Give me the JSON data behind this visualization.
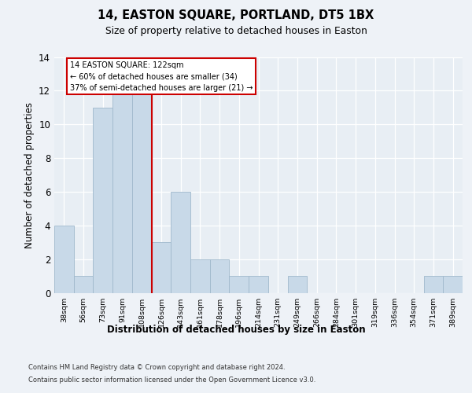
{
  "title1": "14, EASTON SQUARE, PORTLAND, DT5 1BX",
  "title2": "Size of property relative to detached houses in Easton",
  "xlabel": "Distribution of detached houses by size in Easton",
  "ylabel": "Number of detached properties",
  "bin_labels": [
    "38sqm",
    "56sqm",
    "73sqm",
    "91sqm",
    "108sqm",
    "126sqm",
    "143sqm",
    "161sqm",
    "178sqm",
    "196sqm",
    "214sqm",
    "231sqm",
    "249sqm",
    "266sqm",
    "284sqm",
    "301sqm",
    "319sqm",
    "336sqm",
    "354sqm",
    "371sqm",
    "389sqm"
  ],
  "bar_values": [
    4,
    1,
    11,
    12,
    12,
    3,
    6,
    2,
    2,
    1,
    1,
    0,
    1,
    0,
    0,
    0,
    0,
    0,
    0,
    1,
    1
  ],
  "bar_color": "#c8d9e8",
  "bar_edge_color": "#a0b8cc",
  "property_line_x": 4.5,
  "property_label": "14 EASTON SQUARE: 122sqm",
  "annotation_line1": "← 60% of detached houses are smaller (34)",
  "annotation_line2": "37% of semi-detached houses are larger (21) →",
  "vline_color": "#cc0000",
  "annotation_box_color": "#ffffff",
  "annotation_box_edge": "#cc0000",
  "ylim": [
    0,
    14
  ],
  "yticks": [
    0,
    2,
    4,
    6,
    8,
    10,
    12,
    14
  ],
  "footer1": "Contains HM Land Registry data © Crown copyright and database right 2024.",
  "footer2": "Contains public sector information licensed under the Open Government Licence v3.0.",
  "fig_bg": "#eef2f7",
  "plot_bg": "#e8eef4"
}
